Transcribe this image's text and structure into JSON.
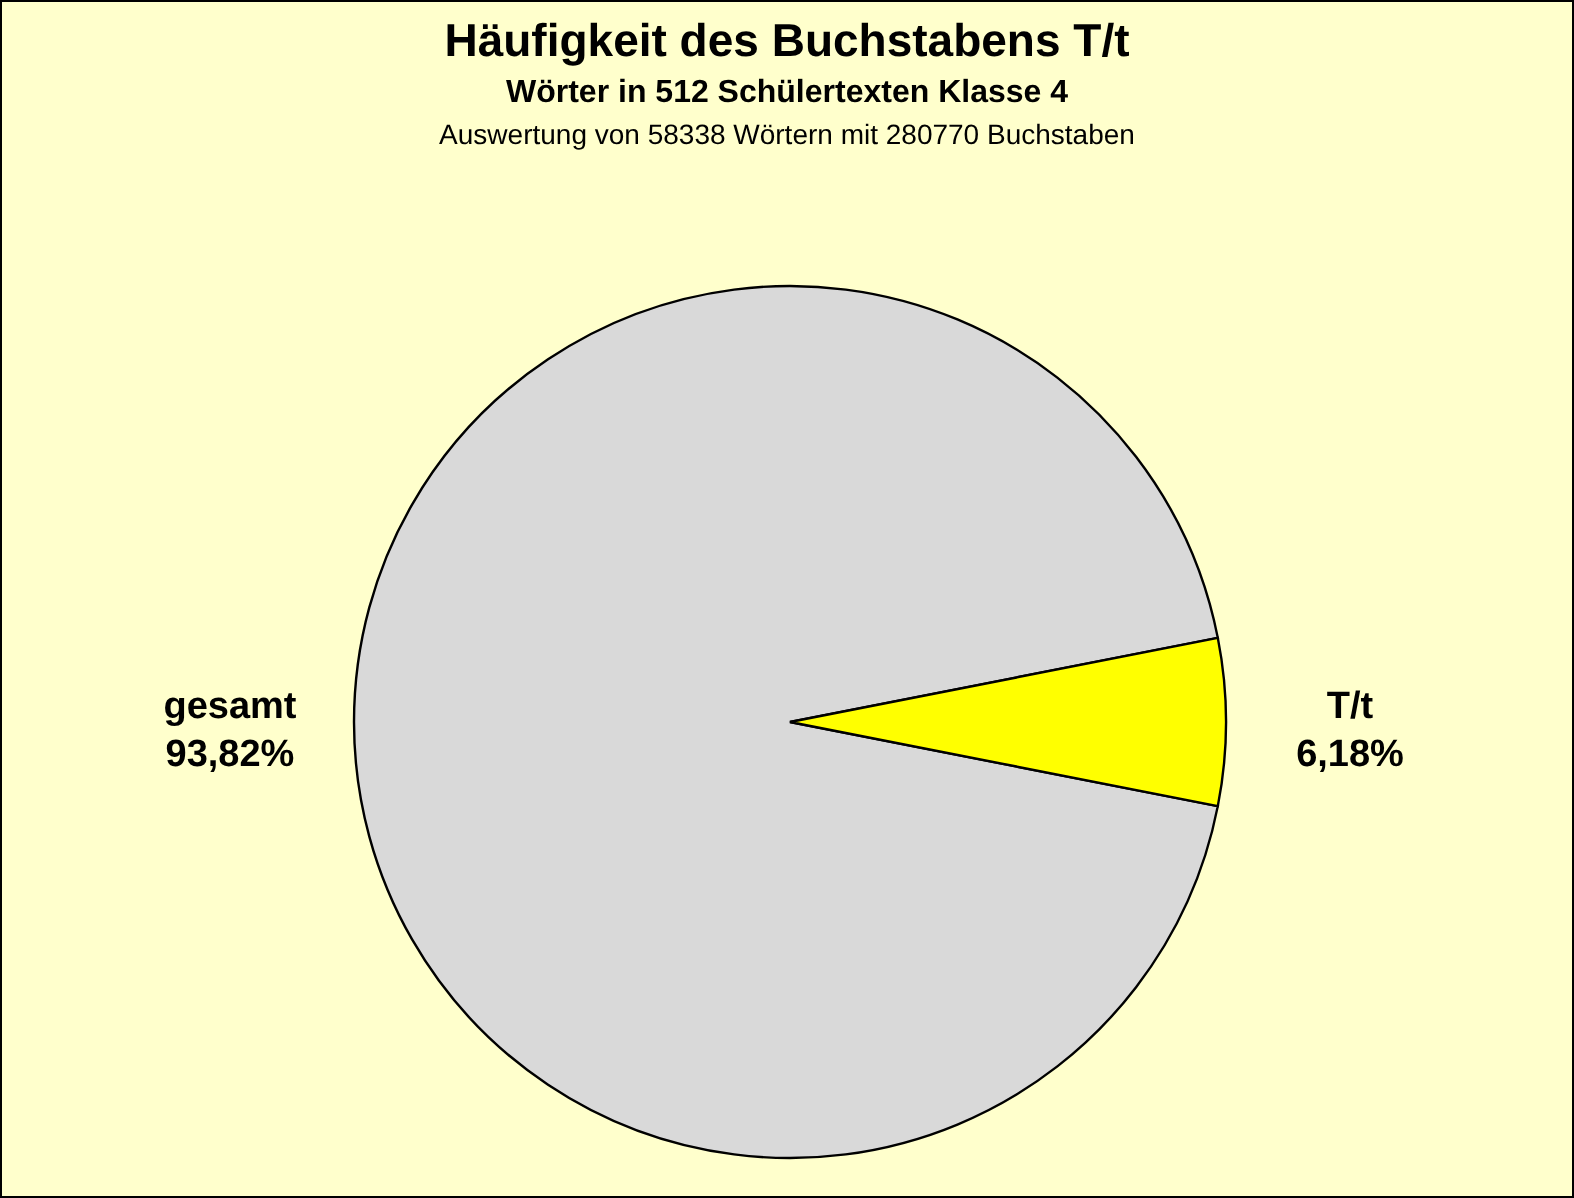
{
  "chart_data": {
    "type": "pie",
    "title": "Häufigkeit des Buchstabens T/t",
    "subtitle": "Wörter in 512 Schülertexten Klasse 4",
    "annotations": [
      "Auswertung von 58338 Wörtern mit 280770 Buchstaben"
    ],
    "categories": [
      "gesamt",
      "T/t"
    ],
    "values": [
      93.82,
      6.18
    ],
    "colors": [
      "#d9d9d9",
      "#ffff00"
    ],
    "value_labels": [
      "93,82%",
      "6,18%"
    ]
  }
}
